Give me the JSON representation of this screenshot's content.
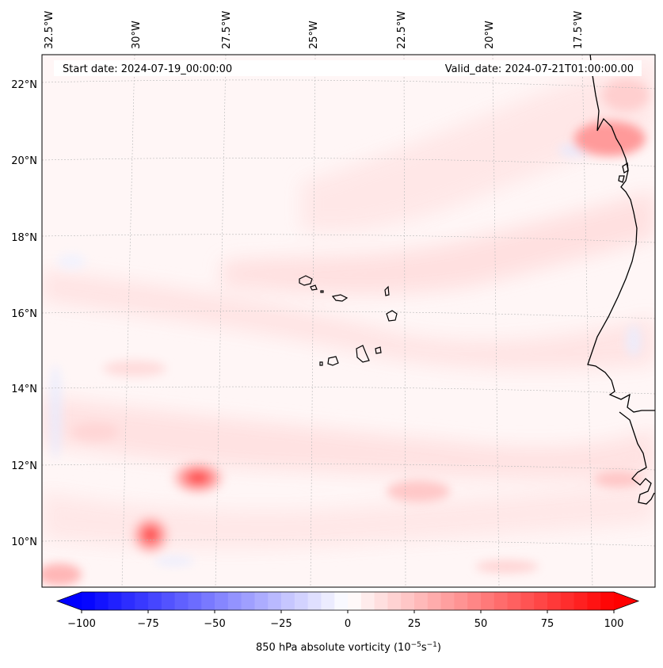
{
  "map": {
    "start_date_label": "Start date: 2024-07-19_00:00:00",
    "valid_date_label": "Valid_date: 2024-07-21T01:00:00.00",
    "variable_name": "850 hPa absolute vorticity",
    "units_label": "(10",
    "units_exp1": "−5",
    "units_mid": "s",
    "units_exp2": "−1",
    "units_close": ")",
    "longitude_labels": [
      "32.5°W",
      "30°W",
      "27.5°W",
      "25°W",
      "22.5°W",
      "20°W",
      "17.5°W"
    ],
    "latitude_labels": [
      "22°N",
      "20°N",
      "18°N",
      "16°N",
      "14°N",
      "12°N",
      "10°N"
    ],
    "colorbar": {
      "ticks": [
        "−100",
        "−75",
        "−50",
        "−25",
        "0",
        "25",
        "50",
        "75",
        "100"
      ],
      "min": -100,
      "max": 100,
      "negative_color": "#0000ff",
      "zero_color": "#ffffff",
      "positive_color": "#ff0000"
    },
    "coastline_color": "#000000",
    "gridline_color": "#b0b0b0"
  }
}
